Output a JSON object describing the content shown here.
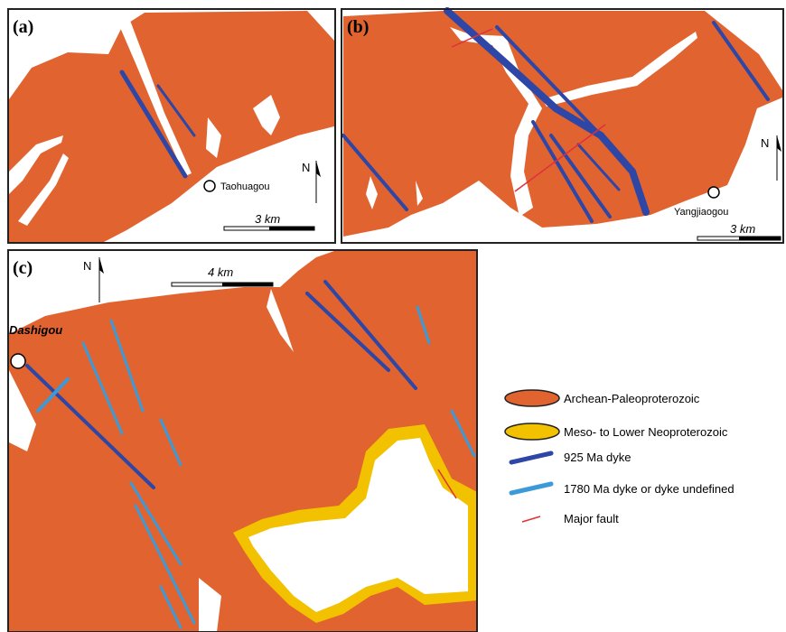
{
  "panels": [
    {
      "label": "(a)",
      "place": "Taohuagou",
      "scale": "3 km",
      "north": "N"
    },
    {
      "label": "(b)",
      "place": "Yangjiaogou",
      "scale": "3 km",
      "north": "N"
    },
    {
      "label": "(c)",
      "place": "Dashigou",
      "scale": "4 km",
      "north": "N"
    }
  ],
  "legend": [
    {
      "label": "Archean-Paleoproterozoic"
    },
    {
      "label": "Meso- to Lower Neoproterozoic"
    },
    {
      "label": "925 Ma dyke"
    },
    {
      "label": "1780 Ma dyke or dyke undefined"
    },
    {
      "label": "Major fault"
    }
  ]
}
